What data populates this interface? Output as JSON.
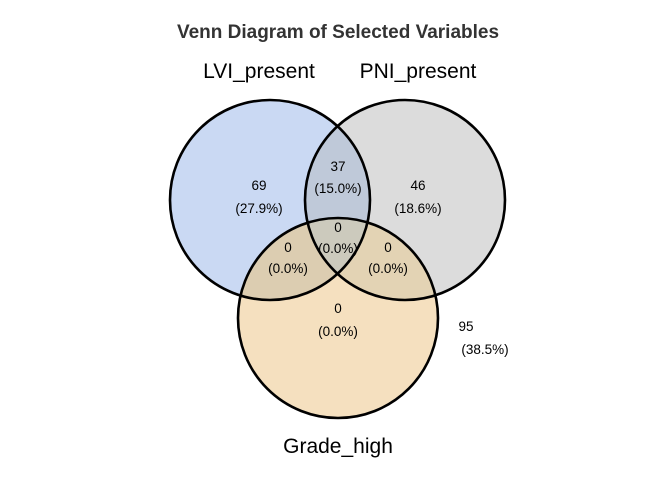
{
  "title": "Venn Diagram of Selected Variables",
  "sets": [
    {
      "name": "LVI_present",
      "color": "#cad9f3"
    },
    {
      "name": "PNI_present",
      "color": "#dcdcdc"
    },
    {
      "name": "Grade_high",
      "color": "#f5e0bf"
    }
  ],
  "regions": [
    {
      "id": "lvi-only",
      "count": "69",
      "percent": "(27.9%)"
    },
    {
      "id": "lvi-pni",
      "count": "37",
      "percent": "(15.0%)"
    },
    {
      "id": "pni-only",
      "count": "46",
      "percent": "(18.6%)"
    },
    {
      "id": "all-three",
      "count": "0",
      "percent": "(0.0%)"
    },
    {
      "id": "lvi-grade",
      "count": "0",
      "percent": "(0.0%)"
    },
    {
      "id": "pni-grade",
      "count": "0",
      "percent": "(0.0%)"
    },
    {
      "id": "grade-only",
      "count": "0",
      "percent": "(0.0%)"
    },
    {
      "id": "none",
      "count": "95",
      "percent": "(38.5%)"
    }
  ],
  "colors": {
    "outline": "#000000",
    "overlap_lvi_pni": "#bfc9d9",
    "overlap_lvi_grade": "#dccdb1",
    "overlap_pni_grade": "#e3d3b4",
    "overlap_all": "#cccabd"
  }
}
